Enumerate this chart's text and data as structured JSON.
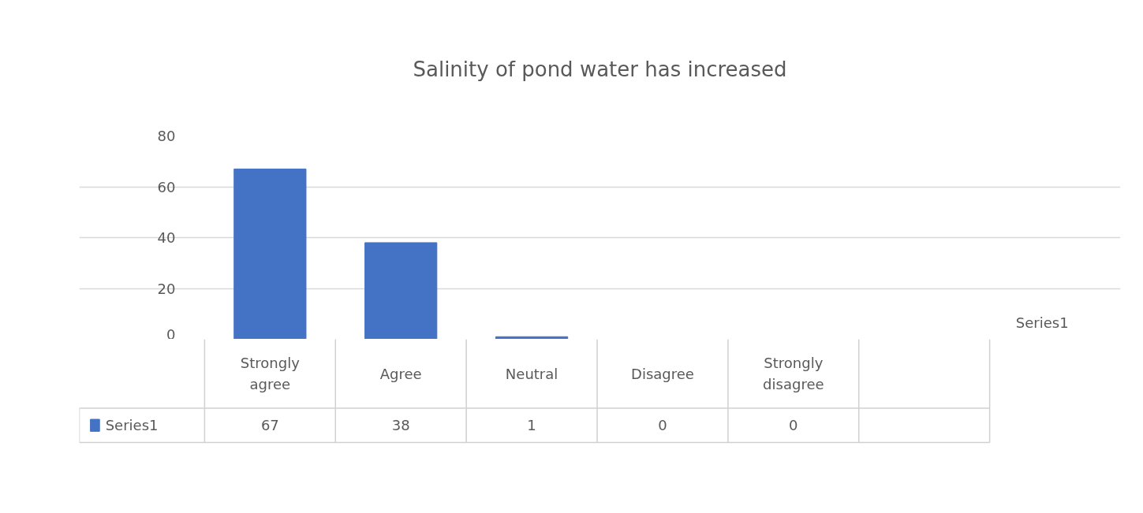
{
  "chart_data": {
    "type": "bar",
    "title": "Salinity of pond water has increased",
    "categories": [
      "Strongly agree",
      "Agree",
      "Neutral",
      "Disagree",
      "Strongly disagree"
    ],
    "series": [
      {
        "name": "Series1",
        "color": "#4472c4",
        "values": [
          67,
          38,
          1,
          0,
          0
        ]
      }
    ],
    "ylim": [
      0,
      80
    ],
    "yticks": [
      0,
      20,
      40,
      60,
      80
    ],
    "grid": "y",
    "legend": "bottom",
    "data_labels": true
  }
}
